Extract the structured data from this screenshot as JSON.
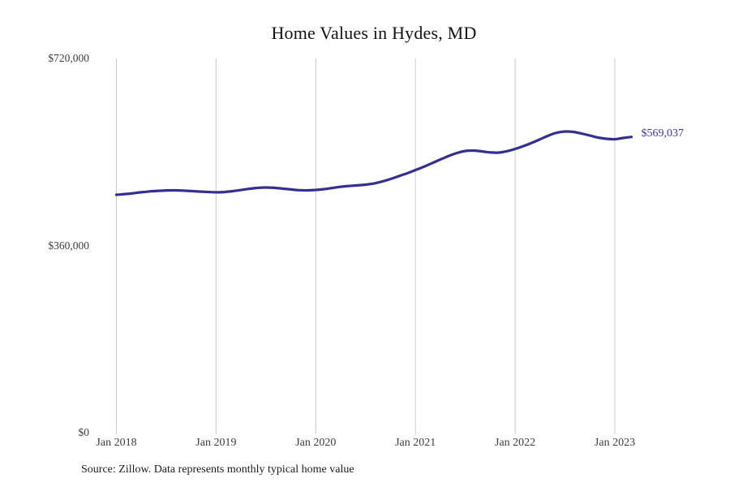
{
  "title": "Home Values in Hydes, MD",
  "source_note": "Source: Zillow. Data represents monthly typical home value",
  "end_label": "$569,037",
  "colors": {
    "line": "#33308f",
    "end_label_text": "#3c3a92",
    "gridline": "#cbcbcb",
    "tick_text": "#3d3d3d",
    "title_text": "#131313",
    "background": "#ffffff"
  },
  "chart_data": {
    "type": "line",
    "title": "Home Values in Hydes, MD",
    "series_name": "Monthly typical home value",
    "xlabel": "",
    "ylabel": "",
    "ylim": [
      0,
      720000
    ],
    "grid": "vertical-only",
    "legend": "none",
    "x": [
      "2018-01",
      "2018-02",
      "2018-03",
      "2018-04",
      "2018-05",
      "2018-06",
      "2018-07",
      "2018-08",
      "2018-09",
      "2018-10",
      "2018-11",
      "2018-12",
      "2019-01",
      "2019-02",
      "2019-03",
      "2019-04",
      "2019-05",
      "2019-06",
      "2019-07",
      "2019-08",
      "2019-09",
      "2019-10",
      "2019-11",
      "2019-12",
      "2020-01",
      "2020-02",
      "2020-03",
      "2020-04",
      "2020-05",
      "2020-06",
      "2020-07",
      "2020-08",
      "2020-09",
      "2020-10",
      "2020-11",
      "2020-12",
      "2021-01",
      "2021-02",
      "2021-03",
      "2021-04",
      "2021-05",
      "2021-06",
      "2021-07",
      "2021-08",
      "2021-09",
      "2021-10",
      "2021-11",
      "2021-12",
      "2022-01",
      "2022-02",
      "2022-03",
      "2022-04",
      "2022-05",
      "2022-06",
      "2022-07",
      "2022-08",
      "2022-09",
      "2022-10",
      "2022-11",
      "2022-12",
      "2023-01",
      "2023-02",
      "2023-03"
    ],
    "values": [
      457600,
      459000,
      460600,
      462500,
      464100,
      465300,
      466100,
      466200,
      465700,
      464800,
      463900,
      463100,
      462400,
      463000,
      464600,
      466800,
      469100,
      470900,
      471700,
      471000,
      469500,
      467900,
      466500,
      466200,
      467000,
      468500,
      470800,
      473000,
      474700,
      475700,
      477100,
      479400,
      483200,
      488000,
      493500,
      499000,
      505200,
      511500,
      518500,
      525500,
      532400,
      538000,
      541900,
      542700,
      541200,
      539200,
      538800,
      541500,
      545800,
      551300,
      557500,
      564500,
      571500,
      577000,
      579400,
      578600,
      575500,
      571600,
      567800,
      565400,
      564600,
      567000,
      569037
    ],
    "yticks": [
      {
        "label": "$0",
        "value": 0
      },
      {
        "label": "$360,000",
        "value": 360000
      },
      {
        "label": "$720,000",
        "value": 720000
      }
    ],
    "xticks": [
      {
        "label": "Jan 2018",
        "index": 0
      },
      {
        "label": "Jan 2019",
        "index": 12
      },
      {
        "label": "Jan 2020",
        "index": 24
      },
      {
        "label": "Jan 2021",
        "index": 36
      },
      {
        "label": "Jan 2022",
        "index": 48
      },
      {
        "label": "Jan 2023",
        "index": 60
      }
    ],
    "annotation": {
      "text": "$569,037",
      "at_index": 62
    }
  }
}
